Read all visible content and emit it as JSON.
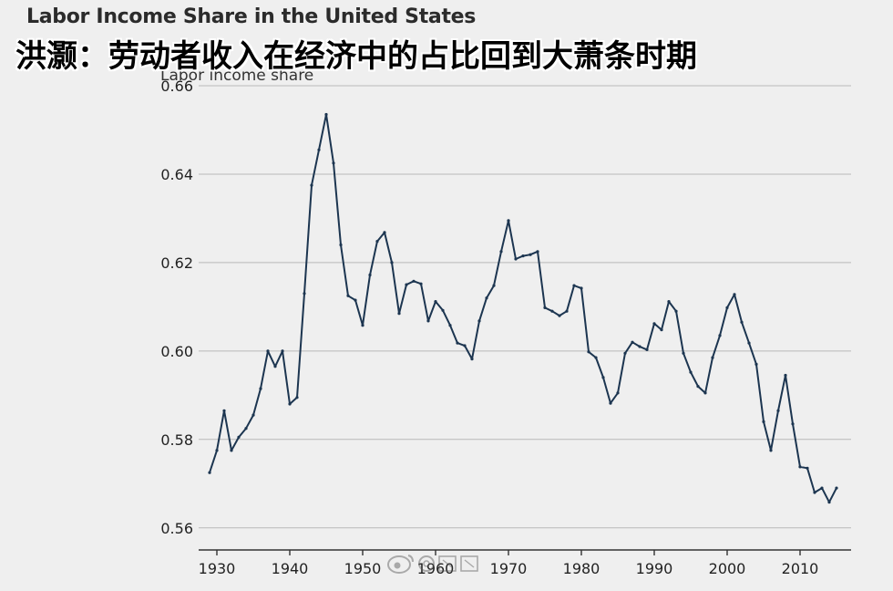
{
  "overlay_caption": "洪灏：劳动者收入在经济中的占比回到大萧条时期",
  "watermark": "@洪灏",
  "chart_data": {
    "type": "line",
    "title": "Labor Income Share in the United States",
    "ylabel": "Labor income share",
    "xlabel": "",
    "xlim": [
      1927.5,
      2017
    ],
    "ylim": [
      0.555,
      0.66
    ],
    "xticks": [
      "1930",
      "1940",
      "1950",
      "1960",
      "1970",
      "1980",
      "1990",
      "2000",
      "2010"
    ],
    "yticks": [
      "0.66",
      "0.64",
      "0.62",
      "0.60",
      "0.58",
      "0.56"
    ],
    "grid": "horizontal",
    "line_color": "#1c3550",
    "x": [
      1929,
      1930,
      1931,
      1932,
      1933,
      1934,
      1935,
      1936,
      1937,
      1938,
      1939,
      1940,
      1941,
      1942,
      1943,
      1944,
      1945,
      1946,
      1947,
      1948,
      1949,
      1950,
      1951,
      1952,
      1953,
      1954,
      1955,
      1956,
      1957,
      1958,
      1959,
      1960,
      1961,
      1962,
      1963,
      1964,
      1965,
      1966,
      1967,
      1968,
      1969,
      1970,
      1971,
      1972,
      1973,
      1974,
      1975,
      1976,
      1977,
      1978,
      1979,
      1980,
      1981,
      1982,
      1983,
      1984,
      1985,
      1986,
      1987,
      1988,
      1989,
      1990,
      1991,
      1992,
      1993,
      1994,
      1995,
      1996,
      1997,
      1998,
      1999,
      2000,
      2001,
      2002,
      2003,
      2004,
      2005,
      2006,
      2007,
      2008,
      2009,
      2010,
      2011,
      2012,
      2013,
      2014,
      2015
    ],
    "y": [
      0.5725,
      0.5775,
      0.5865,
      0.5775,
      0.5805,
      0.5825,
      0.5855,
      0.5915,
      0.6,
      0.5965,
      0.6,
      0.588,
      0.5895,
      0.613,
      0.6375,
      0.6455,
      0.6535,
      0.6425,
      0.624,
      0.6125,
      0.6115,
      0.6058,
      0.6172,
      0.6248,
      0.6268,
      0.62,
      0.6085,
      0.615,
      0.6158,
      0.6152,
      0.6068,
      0.6112,
      0.6092,
      0.6058,
      0.6018,
      0.6012,
      0.5982,
      0.6068,
      0.612,
      0.6148,
      0.6225,
      0.6295,
      0.6208,
      0.6215,
      0.6218,
      0.6225,
      0.6098,
      0.609,
      0.608,
      0.609,
      0.6148,
      0.6142,
      0.5998,
      0.5985,
      0.594,
      0.5882,
      0.5905,
      0.5995,
      0.602,
      0.601,
      0.6003,
      0.6062,
      0.6048,
      0.6112,
      0.609,
      0.5995,
      0.5952,
      0.592,
      0.5905,
      0.5985,
      0.6035,
      0.6098,
      0.6128,
      0.6065,
      0.6018,
      0.597,
      0.584,
      0.5775,
      0.5865,
      0.5945,
      0.5835,
      0.5738,
      0.5735,
      0.568,
      0.569,
      0.5658,
      0.569
    ]
  }
}
